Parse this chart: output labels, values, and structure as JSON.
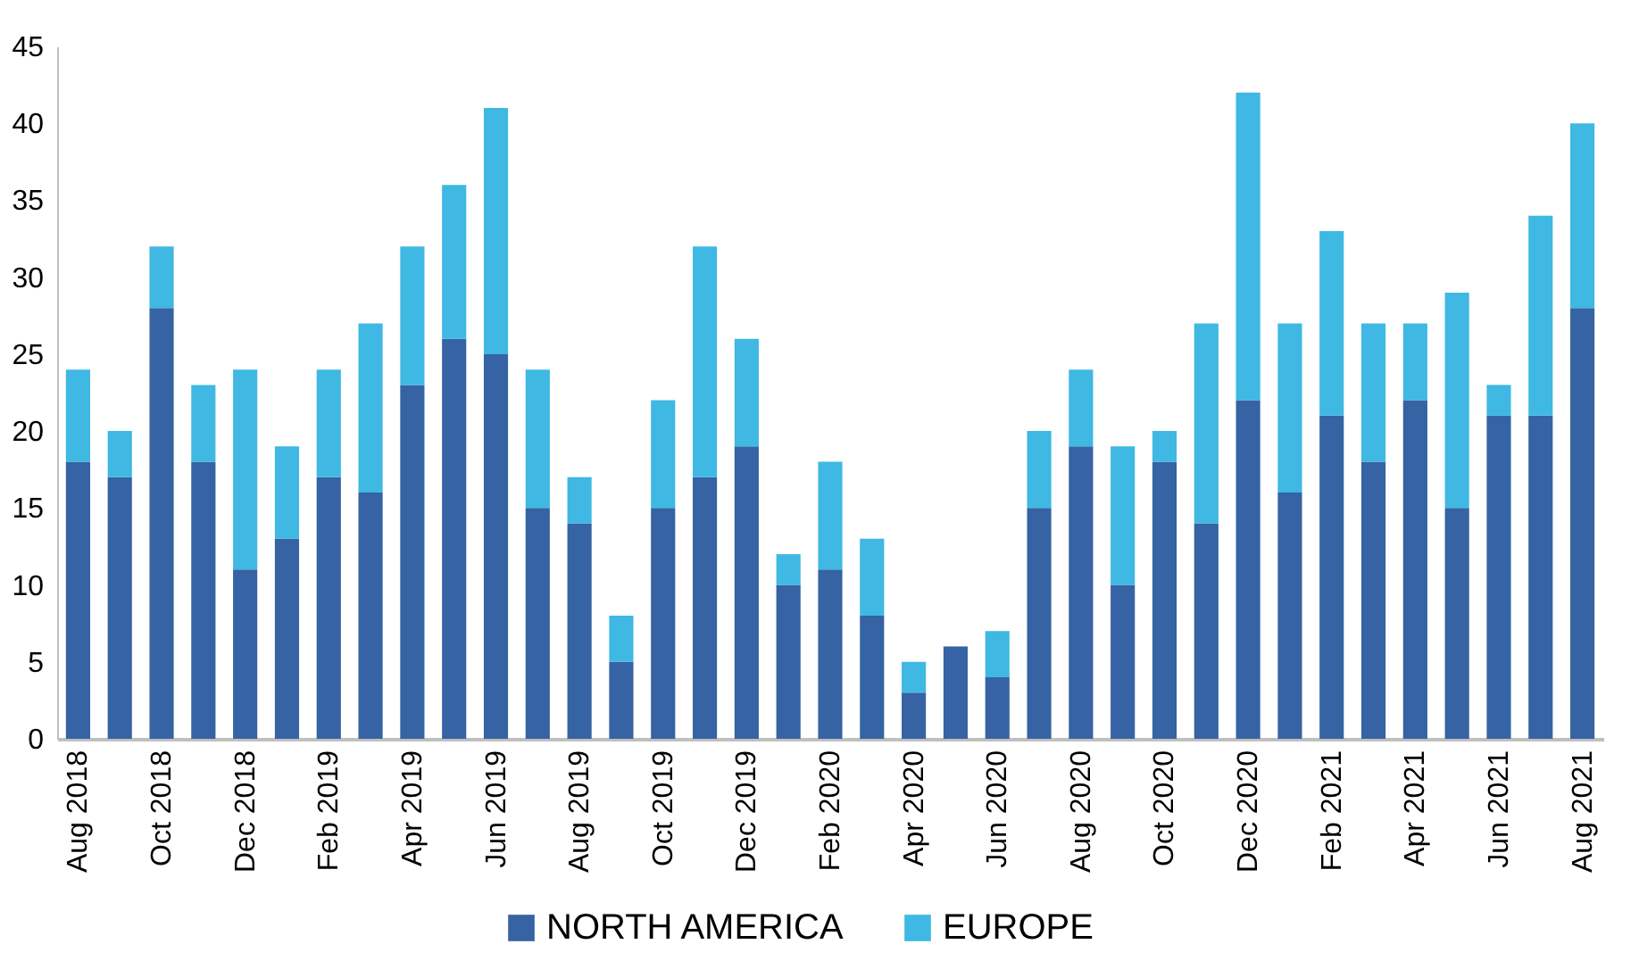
{
  "chart_data": {
    "type": "bar",
    "stacked": true,
    "legend": "bottom",
    "grid": false,
    "categories": [
      "Aug 2018",
      null,
      "Oct 2018",
      null,
      "Dec 2018",
      null,
      "Feb 2019",
      null,
      "Apr 2019",
      null,
      "Jun 2019",
      null,
      "Aug 2019",
      null,
      "Oct 2019",
      null,
      "Dec 2019",
      null,
      "Feb 2020",
      null,
      "Apr 2020",
      null,
      "Jun 2020",
      null,
      "Aug 2020",
      null,
      "Oct 2020",
      null,
      "Dec 2020",
      null,
      "Feb 2021",
      null,
      "Apr 2021",
      null,
      "Jun 2021",
      null,
      "Aug 2021"
    ],
    "ylim": [
      0,
      45
    ],
    "yticks": [
      0,
      5,
      10,
      15,
      20,
      25,
      30,
      35,
      40,
      45
    ],
    "series": [
      {
        "name": "NORTH AMERICA",
        "color": "#3563a3",
        "values": [
          18,
          17,
          28,
          18,
          11,
          13,
          17,
          16,
          23,
          26,
          25,
          15,
          14,
          5,
          15,
          17,
          19,
          10,
          11,
          8,
          3,
          6,
          4,
          15,
          19,
          10,
          18,
          14,
          22,
          16,
          21,
          18,
          22,
          15,
          21,
          21,
          28
        ]
      },
      {
        "name": "EUROPE",
        "color": "#3fb8e3",
        "values": [
          6,
          3,
          4,
          5,
          13,
          6,
          7,
          11,
          9,
          10,
          16,
          9,
          3,
          3,
          7,
          15,
          7,
          2,
          7,
          5,
          2,
          0,
          3,
          5,
          5,
          9,
          2,
          13,
          20,
          11,
          12,
          9,
          5,
          14,
          2,
          13,
          12
        ]
      }
    ]
  }
}
